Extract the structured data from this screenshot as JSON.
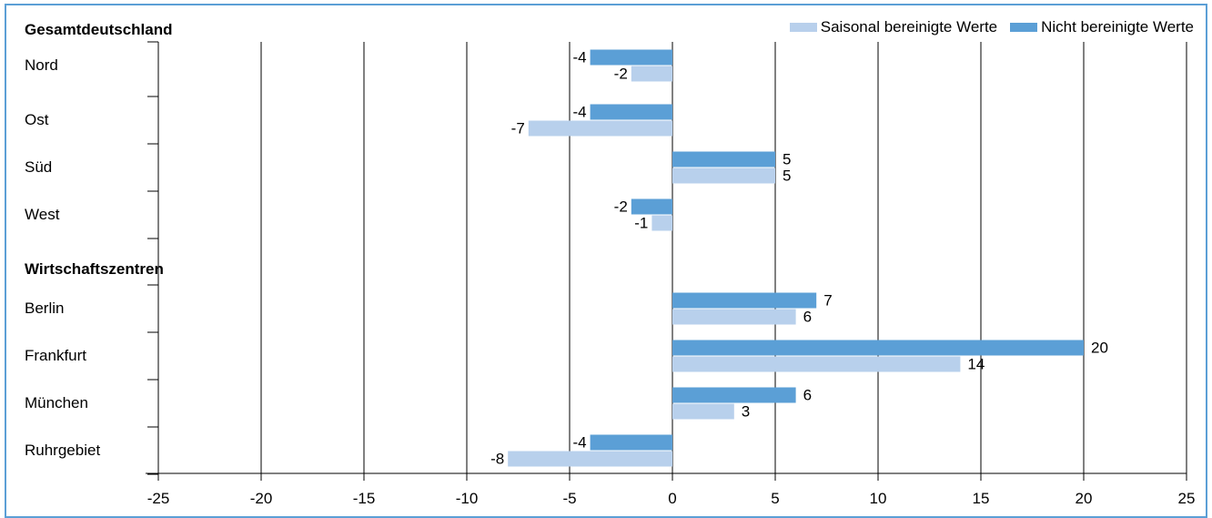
{
  "chart_data": {
    "type": "bar",
    "orientation": "horizontal",
    "groups": [
      {
        "title": "Gesamtdeutschland",
        "categories": [
          "Nord",
          "Ost",
          "Süd",
          "West"
        ]
      },
      {
        "title": "Wirtschaftszentren",
        "categories": [
          "Berlin",
          "Frankfurt",
          "München",
          "Ruhrgebiet"
        ]
      }
    ],
    "categories": [
      "Nord",
      "Ost",
      "Süd",
      "West",
      "Berlin",
      "Frankfurt",
      "München",
      "Ruhrgebiet"
    ],
    "series": [
      {
        "name": "Nicht bereinigte Werte",
        "color": "#5b9fd6",
        "values": [
          -4,
          -4,
          5,
          -2,
          7,
          20,
          6,
          -4
        ]
      },
      {
        "name": "Saisonal bereinigte Werte",
        "color": "#b8d0ec",
        "values": [
          -2,
          -7,
          5,
          -1,
          6,
          14,
          3,
          -8
        ]
      }
    ],
    "legend_order": [
      "Saisonal bereinigte Werte",
      "Nicht bereinigte Werte"
    ],
    "xlim": [
      -25,
      25
    ],
    "xticks": [
      -25,
      -20,
      -15,
      -10,
      -5,
      0,
      5,
      10,
      15,
      20,
      25
    ],
    "grid": "vertical",
    "legend_position": "top-right"
  }
}
